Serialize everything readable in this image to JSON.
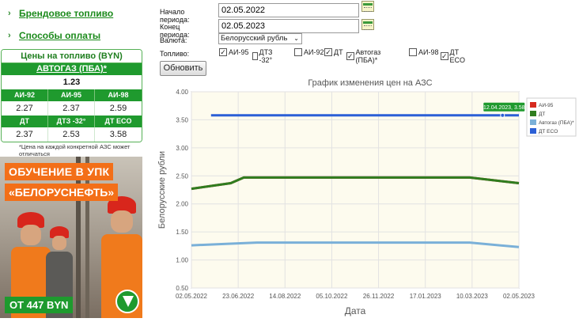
{
  "nav": {
    "items": [
      {
        "label": "Брендовое топливо"
      },
      {
        "label": "Способы оплаты"
      }
    ]
  },
  "prices": {
    "title": "Цены на топливо (BYN)",
    "featured": {
      "name": "АВТОГАЗ (ПБА)*",
      "value": "1.23"
    },
    "row1": [
      {
        "name": "АИ-92",
        "value": "2.27"
      },
      {
        "name": "АИ-95",
        "value": "2.37"
      },
      {
        "name": "АИ-98",
        "value": "2.59"
      }
    ],
    "row2": [
      {
        "name": "ДТ",
        "value": "2.37"
      },
      {
        "name": "ДТЗ -32°",
        "value": "2.53"
      },
      {
        "name": "ДТ ECO",
        "value": "3.58"
      }
    ],
    "note": "*Цена на каждой конкретной АЗС может отличаться"
  },
  "ad": {
    "line1": "ОБУЧЕНИЕ В УПК",
    "line2": "«БЕЛОРУСНЕФТЬ»",
    "price": "ОТ 447 BYN"
  },
  "form": {
    "start_label": "Начало периода:",
    "start_value": "02.05.2022",
    "end_label": "Конец периода:",
    "end_value": "02.05.2023",
    "currency_label": "Валюта:",
    "currency_value": "Белорусский рубль",
    "fuel_label": "Топливо:",
    "fuels": [
      {
        "label": "АИ-95",
        "checked": true
      },
      {
        "label": "ДТЗ -32°",
        "checked": false
      },
      {
        "label": "АИ-92",
        "checked": false
      },
      {
        "label": "ДТ",
        "checked": true
      },
      {
        "label": "Автогаз (ПБА)*",
        "checked": true
      },
      {
        "label": "АИ-98",
        "checked": false
      },
      {
        "label": "ДТ ECO",
        "checked": true
      }
    ],
    "submit_label": "Обновить"
  },
  "chart_data": {
    "type": "line",
    "title": "График изменения цен на АЗС",
    "xlabel": "Дата",
    "ylabel": "Белорусские рубли",
    "ylim": [
      0.5,
      4.0
    ],
    "yticks": [
      "4.00",
      "3.50",
      "3.00",
      "2.50",
      "2.00",
      "1.50",
      "1.00",
      "0.50"
    ],
    "xticks": [
      "02.05.2022",
      "23.06.2022",
      "14.08.2022",
      "05.10.2022",
      "26.11.2022",
      "17.01.2023",
      "10.03.2023",
      "02.05.2023"
    ],
    "grid": true,
    "legend_position": "right",
    "tooltip": "12.04.2023, 3.58",
    "series": [
      {
        "name": "АИ-95",
        "color": "#d62a1e",
        "values": [
          [
            0,
            2.27
          ],
          [
            0.12,
            2.37
          ],
          [
            0.16,
            2.47
          ],
          [
            0.85,
            2.47
          ],
          [
            1,
            2.37
          ]
        ]
      },
      {
        "name": "ДТ",
        "color": "#2f7d1f",
        "values": [
          [
            0,
            2.27
          ],
          [
            0.12,
            2.37
          ],
          [
            0.16,
            2.47
          ],
          [
            0.85,
            2.47
          ],
          [
            1,
            2.37
          ]
        ]
      },
      {
        "name": "Автогаз (ПБА)*",
        "color": "#7ab0d8",
        "values": [
          [
            0,
            1.26
          ],
          [
            0.12,
            1.29
          ],
          [
            0.2,
            1.31
          ],
          [
            0.85,
            1.31
          ],
          [
            1,
            1.23
          ]
        ]
      },
      {
        "name": "ДТ ECO",
        "color": "#2b5fd6",
        "values": [
          [
            0.06,
            3.58
          ],
          [
            1,
            3.58
          ]
        ]
      }
    ]
  }
}
